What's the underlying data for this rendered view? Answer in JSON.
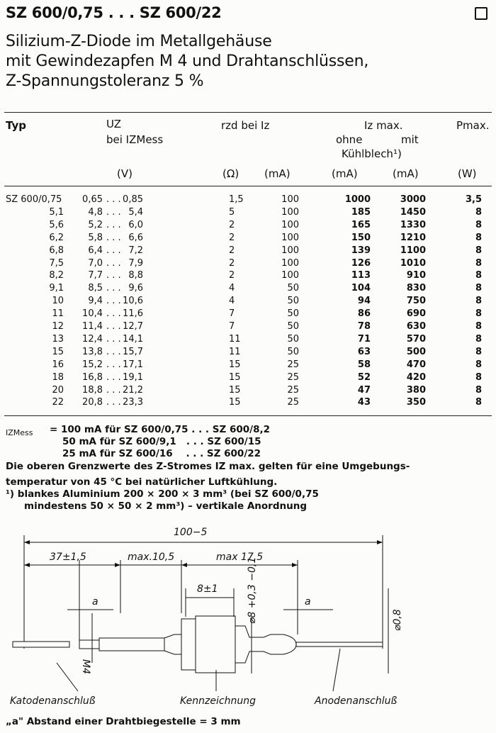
{
  "title": "SZ 600/0,75 . . . SZ 600/22",
  "subtitle_lines": [
    "Silizium-Z-Diode im Metallgehäuse",
    "mit Gewindezapfen M 4 und Drahtanschlüssen,",
    "Z-Spannungstoleranz 5 %"
  ],
  "table": {
    "headers": {
      "typ": "Typ",
      "uz": "UZ",
      "uz_sub": "bei IZMess",
      "rzd": "rzd bei Iz",
      "iz_max": "Iz max.",
      "ohne": "ohne",
      "mit": "mit",
      "kuehlblech": "Kühlblech¹)",
      "pmax": "Pmax."
    },
    "units": [
      "(V)",
      "(Ω)",
      "(mA)",
      "(mA)",
      "(mA)",
      "(W)"
    ],
    "rows": [
      [
        "SZ 600/0,75",
        "0,65",
        "0,85",
        "1,5",
        "100",
        "1000",
        "3000",
        "3,5"
      ],
      [
        "5,1",
        "4,8",
        "5,4",
        "5",
        "100",
        "185",
        "1450",
        "8"
      ],
      [
        "5,6",
        "5,2",
        "6,0",
        "2",
        "100",
        "165",
        "1330",
        "8"
      ],
      [
        "6,2",
        "5,8",
        "6,6",
        "2",
        "100",
        "150",
        "1210",
        "8"
      ],
      [
        "6,8",
        "6,4",
        "7,2",
        "2",
        "100",
        "139",
        "1100",
        "8"
      ],
      [
        "7,5",
        "7,0",
        "7,9",
        "2",
        "100",
        "126",
        "1010",
        "8"
      ],
      [
        "8,2",
        "7,7",
        "8,8",
        "2",
        "100",
        "113",
        "910",
        "8"
      ],
      [
        "9,1",
        "8,5",
        "9,6",
        "4",
        "50",
        "104",
        "830",
        "8"
      ],
      [
        "10",
        "9,4",
        "10,6",
        "4",
        "50",
        "94",
        "750",
        "8"
      ],
      [
        "11",
        "10,4",
        "11,6",
        "7",
        "50",
        "86",
        "690",
        "8"
      ],
      [
        "12",
        "11,4",
        "12,7",
        "7",
        "50",
        "78",
        "630",
        "8"
      ],
      [
        "13",
        "12,4",
        "14,1",
        "11",
        "50",
        "71",
        "570",
        "8"
      ],
      [
        "15",
        "13,8",
        "15,7",
        "11",
        "50",
        "63",
        "500",
        "8"
      ],
      [
        "16",
        "15,2",
        "17,1",
        "15",
        "25",
        "58",
        "470",
        "8"
      ],
      [
        "18",
        "16,8",
        "19,1",
        "15",
        "25",
        "52",
        "420",
        "8"
      ],
      [
        "20",
        "18,8",
        "21,2",
        "15",
        "25",
        "47",
        "380",
        "8"
      ],
      [
        "22",
        "20,8",
        "23,3",
        "15",
        "25",
        "43",
        "350",
        "8"
      ]
    ]
  },
  "notes": {
    "izmess_label": "IZMess",
    "izmess_lines": [
      "= 100 mA für SZ 600/0,75 . . . SZ 600/8,2",
      "50 mA für SZ 600/9,1   . . . SZ 600/15",
      "25 mA für SZ 600/16    . . . SZ 600/22"
    ],
    "limits_lines": [
      "Die oberen Grenzwerte des Z-Stromes IZ max. gelten für eine Umgebungs-",
      "temperatur von 45 °C bei natürlicher Luftkühlung."
    ],
    "footnote_lines": [
      "¹)  blankes Aluminium 200 × 200 × 3 mm³ (bei SZ 600/0,75",
      "mindestens 50 × 50 × 2 mm³) – vertikale Anordnung"
    ]
  },
  "drawing": {
    "total_length": "100−5",
    "dim_37": "37±1,5",
    "dim_max105": "max.10,5",
    "dim_max175": "max 17,5",
    "dim_8": "8±1",
    "dia_body": "⌀8 +0,3 −0,1",
    "a_left": "a",
    "a_right": "a",
    "dia_wire": "⌀0,8",
    "thread": "M4",
    "label_cathode": "Katodenanschluß",
    "label_marking": "Kennzeichnung",
    "label_anode": "Anodenanschluß"
  },
  "footer": "„a\" Abstand einer Drahtbiegestelle = 3 mm"
}
